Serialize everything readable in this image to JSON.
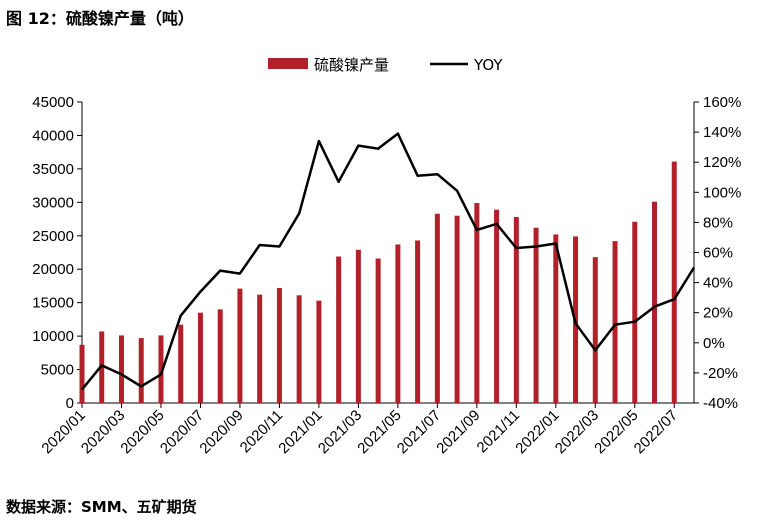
{
  "title": "图 12：硫酸镍产量（吨）",
  "source": "数据来源：SMM、五矿期货",
  "colors": {
    "bar": "#B2202A",
    "line": "#000000"
  },
  "chart_data": {
    "type": "bar+line",
    "x": [
      "2020/01",
      "2020/02",
      "2020/03",
      "2020/04",
      "2020/05",
      "2020/06",
      "2020/07",
      "2020/08",
      "2020/09",
      "2020/10",
      "2020/11",
      "2020/12",
      "2021/01",
      "2021/02",
      "2021/03",
      "2021/04",
      "2021/05",
      "2021/06",
      "2021/07",
      "2021/08",
      "2021/09",
      "2021/10",
      "2021/11",
      "2021/12",
      "2022/01",
      "2022/02",
      "2022/03",
      "2022/04",
      "2022/05",
      "2022/06",
      "2022/07",
      "2022/08"
    ],
    "xtick_labels": [
      "2020/01",
      "2020/03",
      "2020/05",
      "2020/07",
      "2020/09",
      "2020/11",
      "2021/01",
      "2021/03",
      "2021/05",
      "2021/07",
      "2021/09",
      "2021/11",
      "2022/01",
      "2022/03",
      "2022/05",
      "2022/07"
    ],
    "series": [
      {
        "name": "硫酸镍产量",
        "type": "bar",
        "axis": "left",
        "values": [
          8700,
          10700,
          10100,
          9700,
          10100,
          11700,
          13500,
          14000,
          17100,
          16200,
          17200,
          16100,
          15300,
          21900,
          22900,
          21600,
          23700,
          24300,
          28300,
          28000,
          29900,
          28900,
          27800,
          26200,
          25200,
          24900,
          21800,
          24200,
          27100,
          30100,
          36100,
          0
        ]
      },
      {
        "name": "YOY",
        "type": "line",
        "axis": "right",
        "values": [
          -31,
          -15,
          -21,
          -29,
          -21,
          18,
          34,
          48,
          46,
          65,
          64,
          86,
          134,
          107,
          131,
          129,
          139,
          111,
          112,
          101,
          75,
          79,
          63,
          64,
          66,
          13,
          -5,
          12,
          14,
          24,
          29,
          50
        ]
      }
    ],
    "y_left": {
      "min": 0,
      "max": 45000,
      "step": 5000,
      "ticks": [
        "0",
        "5000",
        "10000",
        "15000",
        "20000",
        "25000",
        "30000",
        "35000",
        "40000",
        "45000"
      ]
    },
    "y_right": {
      "min": -40,
      "max": 160,
      "step": 20,
      "ticks": [
        "-40%",
        "-20%",
        "0%",
        "20%",
        "40%",
        "60%",
        "80%",
        "100%",
        "120%",
        "140%",
        "160%"
      ]
    },
    "legend": {
      "position": "top-center",
      "items": [
        "硫酸镍产量",
        "YOY"
      ]
    },
    "grid": false
  }
}
